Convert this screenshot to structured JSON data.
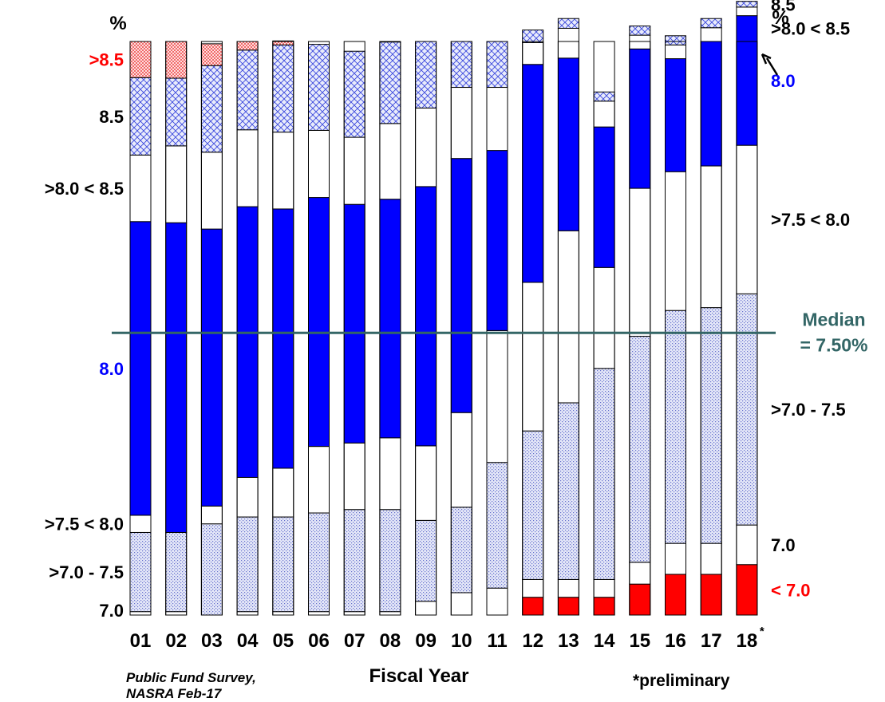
{
  "chart_data": {
    "type": "bar",
    "stacked": true,
    "normalized": true,
    "xlabel": "Fiscal Year",
    "categories": [
      "01",
      "02",
      "03",
      "04",
      "05",
      "06",
      "07",
      "08",
      "09",
      "10",
      "11",
      "12",
      "13",
      "14",
      "15",
      "16",
      "17",
      "18"
    ],
    "category_marker": {
      "index": 17,
      "text": "*"
    },
    "ylim": [
      0,
      100
    ],
    "series": [
      {
        "key": "lt70",
        "fill": "solid",
        "color": "#ff0000",
        "values": [
          0,
          0,
          0,
          0,
          0,
          0,
          0,
          0,
          0,
          0,
          0,
          3.1,
          3.1,
          3.1,
          5.4,
          7.1,
          7.1,
          8.8
        ]
      },
      {
        "key": "eq70",
        "fill": "outline",
        "color": "#ffffff",
        "values": [
          0.6,
          0.6,
          0,
          0.6,
          0.6,
          0.6,
          0.6,
          0.6,
          2.4,
          3.9,
          4.7,
          3.1,
          3.1,
          3.1,
          3.8,
          5.4,
          5.4,
          6.9
        ]
      },
      {
        "key": "70to75",
        "fill": "dots",
        "color": "#bcc3ea",
        "values": [
          13.8,
          13.8,
          15.9,
          16.5,
          16.5,
          17.2,
          17.8,
          17.8,
          14.1,
          14.9,
          21.9,
          25.9,
          30.8,
          36.8,
          39.4,
          40.6,
          41.1,
          40.3
        ]
      },
      {
        "key": "75to80",
        "fill": "outline",
        "color": "#ffffff",
        "values": [
          3.0,
          0,
          3.1,
          6.9,
          8.5,
          11.6,
          11.6,
          12.5,
          13.0,
          16.5,
          23.0,
          25.9,
          30.0,
          17.6,
          25.8,
          24.2,
          24.7,
          25.9
        ]
      },
      {
        "key": "eq80",
        "fill": "solid",
        "color": "#0000ff",
        "values": [
          51.2,
          54.0,
          48.3,
          47.2,
          45.2,
          43.4,
          41.6,
          41.6,
          45.2,
          44.3,
          31.4,
          38.0,
          30.1,
          24.5,
          24.3,
          19.7,
          21.7,
          22.6
        ]
      },
      {
        "key": "80to85",
        "fill": "outline",
        "color": "#ffffff",
        "values": [
          11.6,
          13.4,
          13.4,
          13.4,
          13.4,
          11.7,
          11.7,
          13.2,
          13.7,
          12.4,
          11.0,
          3.8,
          5.2,
          4.5,
          2.4,
          2.4,
          2.4,
          1.5
        ]
      },
      {
        "key": "eq85",
        "fill": "cross",
        "color": "#aab3ee",
        "values": [
          13.5,
          11.8,
          15.1,
          13.9,
          15.2,
          15.0,
          15.0,
          14.2,
          11.6,
          8.0,
          8.0,
          2.2,
          1.7,
          1.6,
          1.6,
          1.6,
          1.6,
          1.0
        ]
      },
      {
        "key": "gt85",
        "fill": "check",
        "color": "#ffbdbd",
        "values": [
          6.3,
          6.4,
          3.8,
          1.5,
          0.7,
          0,
          0,
          0,
          0,
          0,
          0,
          0,
          0,
          0,
          0,
          0,
          0,
          0
        ]
      }
    ],
    "median": {
      "value": 49.2,
      "text": "Median",
      "text2": "= 7.50%",
      "color": "#336666"
    },
    "left_axis": {
      "unit": "%",
      "labels": [
        {
          "text": ">8.5",
          "series": "gt85",
          "color": "#ff0000"
        },
        {
          "text": "8.5",
          "series": "eq85",
          "color": "#000000"
        },
        {
          "text": ">8.0 < 8.5",
          "series": "80to85",
          "color": "#000000"
        },
        {
          "text": "8.0",
          "series": "eq80",
          "color": "#0000ff"
        },
        {
          "text": ">7.5 < 8.0",
          "series": "75to80",
          "color": "#000000"
        },
        {
          "text": ">7.0 - 7.5",
          "series": "70to75",
          "color": "#000000"
        },
        {
          "text": "7.0",
          "series": "eq70",
          "color": "#000000"
        }
      ]
    },
    "right_axis": {
      "unit": "%",
      "labels": [
        {
          "text": "8.5",
          "series": "eq85",
          "color": "#000000"
        },
        {
          "text": ">8.0 < 8.5",
          "series": "80to85",
          "color": "#000000"
        },
        {
          "text": "8.0",
          "series": "eq80",
          "color": "#0000ff"
        },
        {
          "text": ">7.5 < 8.0",
          "series": "75to80",
          "color": "#000000"
        },
        {
          "text": ">7.0 - 7.5",
          "series": "70to75",
          "color": "#000000"
        },
        {
          "text": "7.0",
          "series": "eq70",
          "color": "#000000"
        },
        {
          "text": "< 7.0",
          "series": "lt70",
          "color": "#ff0000"
        }
      ]
    },
    "source_line1": "Public Fund Survey,",
    "source_line2": "NASRA Feb-17",
    "footnote": "*preliminary"
  }
}
